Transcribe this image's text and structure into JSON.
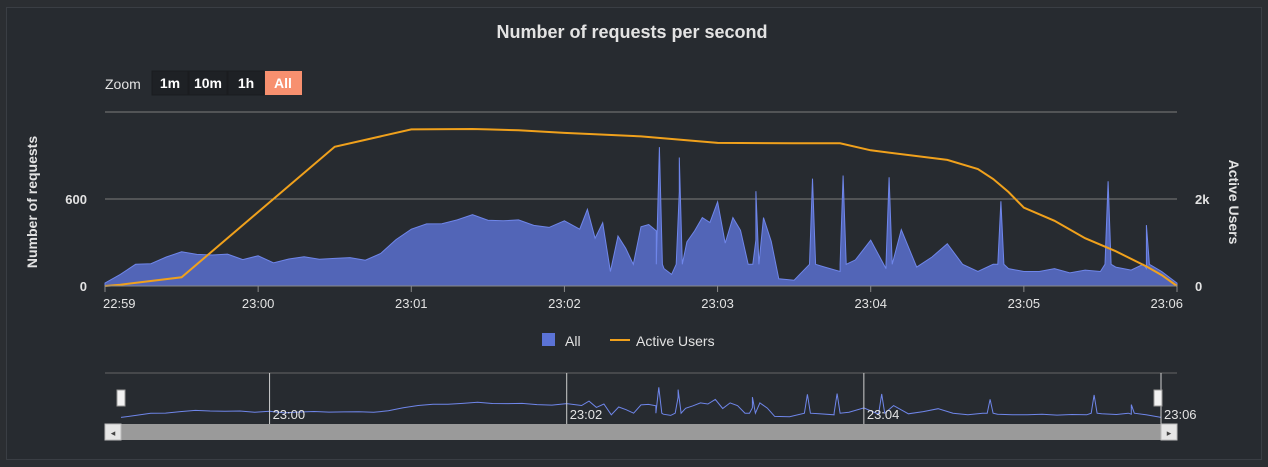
{
  "chart_data": {
    "type": "area",
    "title": "Number of requests per second",
    "zoom": {
      "label": "Zoom",
      "buttons": [
        "1m",
        "10m",
        "1h",
        "All"
      ],
      "selected": "All"
    },
    "x_ticks": [
      "22:59",
      "23:00",
      "23:01",
      "23:02",
      "23:03",
      "23:04",
      "23:05",
      "23:06"
    ],
    "navigator_ticks": [
      "23:00",
      "23:02",
      "23:04",
      "23:06"
    ],
    "y_left": {
      "label": "Number of requests",
      "ticks": [
        "0",
        "600"
      ],
      "tick_values": [
        0,
        600
      ],
      "range": [
        0,
        1200
      ]
    },
    "y_right": {
      "label": "Active Users",
      "ticks": [
        "0",
        "2k"
      ],
      "tick_values": [
        0,
        2000
      ],
      "range": [
        0,
        4000
      ]
    },
    "legend": {
      "placement": "bottom-center"
    },
    "series": [
      {
        "name": "All",
        "kind": "area",
        "axis": "left",
        "color": "#5b73d6",
        "x_minutes": [
          0,
          0.1,
          0.2,
          0.3,
          0.4,
          0.5,
          0.6,
          0.7,
          0.8,
          0.9,
          1.0,
          1.1,
          1.2,
          1.3,
          1.4,
          1.5,
          1.6,
          1.7,
          1.8,
          1.9,
          2.0,
          2.1,
          2.2,
          2.3,
          2.4,
          2.5,
          2.6,
          2.7,
          2.8,
          2.9,
          3.0,
          3.1,
          3.15,
          3.2,
          3.25,
          3.3,
          3.35,
          3.4,
          3.45,
          3.5,
          3.55,
          3.6,
          3.65,
          3.7,
          3.75,
          3.8,
          3.85,
          3.9,
          3.95,
          4.0,
          4.05,
          4.1,
          4.15,
          4.2,
          4.25,
          4.3,
          4.35,
          4.4,
          4.5,
          4.6,
          4.7,
          4.8,
          4.9,
          5.0,
          5.1,
          5.2,
          5.3,
          5.4,
          5.5,
          5.6,
          5.7,
          5.8,
          5.9,
          6.0,
          6.1,
          6.2,
          6.3,
          6.4,
          6.5,
          6.6,
          6.7,
          6.8,
          6.9,
          7.0
        ],
        "values": [
          20,
          80,
          150,
          170,
          200,
          220,
          230,
          210,
          200,
          190,
          200,
          180,
          190,
          190,
          200,
          190,
          180,
          190,
          220,
          300,
          400,
          420,
          450,
          460,
          480,
          470,
          450,
          440,
          430,
          400,
          430,
          400,
          520,
          350,
          440,
          100,
          360,
          260,
          150,
          420,
          420,
          360,
          120,
          80,
          650,
          300,
          360,
          480,
          430,
          600,
          300,
          460,
          400,
          150,
          330,
          480,
          300,
          50,
          40,
          150,
          130,
          100,
          200,
          320,
          120,
          400,
          130,
          180,
          300,
          150,
          100,
          150,
          120,
          100,
          100,
          120,
          90,
          110,
          100,
          130,
          110,
          120,
          100,
          20
        ],
        "spikes": [
          [
            3.62,
            950
          ],
          [
            3.75,
            870
          ],
          [
            4.25,
            650
          ],
          [
            4.62,
            740
          ],
          [
            4.82,
            770
          ],
          [
            5.12,
            750
          ],
          [
            5.85,
            600
          ],
          [
            6.55,
            710
          ],
          [
            6.8,
            400
          ]
        ]
      },
      {
        "name": "Active Users",
        "kind": "line",
        "axis": "right",
        "color": "#f0a11c",
        "x_minutes": [
          0,
          0.1,
          0.5,
          1.5,
          2.0,
          2.4,
          2.5,
          2.7,
          3.0,
          3.2,
          3.5,
          4.0,
          4.5,
          4.8,
          5.0,
          5.5,
          5.7,
          5.8,
          5.9,
          6.0,
          6.2,
          6.4,
          6.6,
          6.8,
          6.9,
          7.0
        ],
        "values": [
          0,
          30,
          200,
          3200,
          3600,
          3610,
          3600,
          3580,
          3520,
          3490,
          3440,
          3290,
          3280,
          3280,
          3120,
          2900,
          2690,
          2460,
          2160,
          1800,
          1500,
          1100,
          800,
          450,
          250,
          0
        ]
      }
    ]
  }
}
